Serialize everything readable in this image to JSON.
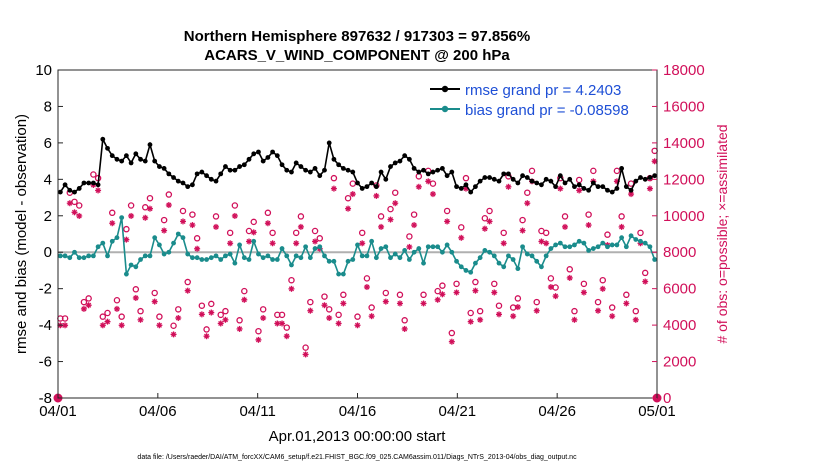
{
  "chart_data": {
    "type": "line",
    "title_line1": "Northern Hemisphere 897632 / 917303 = 97.856%",
    "title_line2": "ACARS_V_WIND_COMPONENT @ 200 hPa",
    "xlabel": "Apr.01,2013 00:00:00 start",
    "ylabel_left": "rmse and bias (model - observation)",
    "ylabel_right": "# of obs: o=possible; ×=assimilated",
    "footer": "data file: /Users/raeder/DAI/ATM_forcXX/CAM6_setup/f.e21.FHIST_BGC.f09_025.CAM6assim.011/Diags_NTrS_2013-04/obs_diag_output.nc",
    "x_ticks": [
      "04/01",
      "04/06",
      "04/11",
      "04/16",
      "04/21",
      "04/26",
      "05/01"
    ],
    "xlim": [
      0,
      30
    ],
    "ylim_left": [
      -8,
      10
    ],
    "y_ticks_left": [
      "-8",
      "-6",
      "-4",
      "-2",
      "0",
      "2",
      "4",
      "6",
      "8",
      "10"
    ],
    "ylim_right": [
      0,
      18000
    ],
    "y_ticks_right": [
      "0",
      "2000",
      "4000",
      "6000",
      "8000",
      "10000",
      "12000",
      "14000",
      "16000",
      "18000"
    ],
    "legend": [
      "rmse grand pr = 4.2403",
      "bias grand pr = -0.08598"
    ],
    "colors": {
      "rmse": "#000000",
      "bias": "#1a8c8c",
      "obs": "#d1105a",
      "zero": "#b0b0b0"
    },
    "series": [
      {
        "name": "rmse",
        "values": [
          3.3,
          3.7,
          3.4,
          3.3,
          3.5,
          3.8,
          3.8,
          3.8,
          3.7,
          6.2,
          5.7,
          5.3,
          5.1,
          5.0,
          5.3,
          4.9,
          5.4,
          5.1,
          5.0,
          5.9,
          5.0,
          4.7,
          4.6,
          4.3,
          4.1,
          3.9,
          3.8,
          3.6,
          3.7,
          4.3,
          4.4,
          4.2,
          4.0,
          3.9,
          4.3,
          4.7,
          4.5,
          4.5,
          4.7,
          4.8,
          5.1,
          5.4,
          5.5,
          5.0,
          5.2,
          5.5,
          5.3,
          4.8,
          4.5,
          4.4,
          4.9,
          4.7,
          4.5,
          4.4,
          4.6,
          4.2,
          4.5,
          6.0,
          5.1,
          4.8,
          4.6,
          4.5,
          4.4,
          3.8,
          3.5,
          3.6,
          3.8,
          3.6,
          4.4,
          4.0,
          4.7,
          4.9,
          5.0,
          5.3,
          5.1,
          4.6,
          4.4,
          4.5,
          4.3,
          4.4,
          4.5,
          4.6,
          4.2,
          4.4,
          3.6,
          3.5,
          3.7,
          3.3,
          3.6,
          3.9,
          4.1,
          4.1,
          4.0,
          3.9,
          4.3,
          4.3,
          4.0,
          3.8,
          4.2,
          4.1,
          3.9,
          3.8,
          3.7,
          4.0,
          3.9,
          3.6,
          4.2,
          3.8,
          4.0,
          3.6,
          3.7,
          3.5,
          3.4,
          3.8,
          3.6,
          3.6,
          3.4,
          3.3,
          3.5,
          4.6,
          3.6,
          3.4,
          3.9,
          4.1,
          4.0,
          4.1,
          4.2
        ]
      },
      {
        "name": "bias",
        "values": [
          -0.2,
          -0.2,
          -0.3,
          0.0,
          -0.3,
          -0.3,
          -0.2,
          -0.2,
          0.3,
          0.5,
          -0.2,
          0.6,
          0.8,
          1.9,
          -1.2,
          -0.7,
          -0.8,
          -0.4,
          -0.2,
          -0.2,
          0.8,
          0.4,
          -0.1,
          0.0,
          0.5,
          1.0,
          0.8,
          -0.1,
          -0.3,
          -0.3,
          -0.4,
          -0.4,
          -0.3,
          -0.2,
          -0.4,
          -0.2,
          -0.1,
          -0.6,
          0.4,
          -0.3,
          -0.4,
          0.6,
          -0.1,
          -0.3,
          -0.2,
          -0.4,
          -0.4,
          0.2,
          -0.2,
          -0.7,
          -0.2,
          -0.3,
          0.3,
          -0.3,
          0.2,
          0.3,
          -0.2,
          -0.5,
          -0.5,
          -1.2,
          -1.2,
          -0.5,
          -0.4,
          0.4,
          -0.2,
          -0.2,
          0.6,
          -0.3,
          0.2,
          0.3,
          -0.3,
          -0.1,
          -0.3,
          0.1,
          -0.4,
          0.0,
          0.2,
          -0.6,
          0.3,
          0.3,
          0.3,
          0.0,
          0.4,
          0.0,
          -0.5,
          -0.8,
          -1.0,
          -1.1,
          -0.6,
          -0.3,
          0.1,
          0.0,
          -0.2,
          -0.6,
          -0.8,
          -0.2,
          -0.4,
          -0.9,
          0.3,
          -0.1,
          -0.2,
          -0.5,
          -0.8,
          -0.2,
          0.2,
          0.4,
          0.5,
          0.3,
          0.3,
          0.4,
          0.6,
          0.5,
          0.1,
          0.2,
          0.3,
          0.5,
          0.3,
          0.4,
          0.4,
          0.8,
          0.3,
          0.9,
          0.7,
          0.6,
          0.5,
          0.3,
          -0.4
        ]
      },
      {
        "name": "obs_possible",
        "values": [
          4200,
          4200,
          11100,
          10600,
          10400,
          5100,
          5300,
          12100,
          11900,
          4300,
          4500,
          10000,
          5200,
          4300,
          9100,
          10400,
          5800,
          4600,
          10300,
          10800,
          5600,
          4300,
          9600,
          11000,
          3800,
          4700,
          10100,
          6200,
          9900,
          8600,
          4900,
          3600,
          5000,
          9800,
          4400,
          4600,
          8900,
          10400,
          4100,
          5700,
          9000,
          9500,
          3500,
          4700,
          10000,
          8900,
          4400,
          4400,
          3700,
          6300,
          8900,
          9800,
          2600,
          5100,
          9000,
          8600,
          5400,
          4700,
          11900,
          4400,
          5500,
          10800,
          11600,
          4300,
          8900,
          6400,
          4800,
          11500,
          9800,
          5600,
          10200,
          11100,
          5500,
          4100,
          8700,
          9900,
          12000,
          5500,
          12300,
          11600,
          5700,
          6000,
          10100,
          3400,
          6100,
          9200,
          11900,
          4500,
          6200,
          4600,
          9700,
          10100,
          6100,
          4900,
          8900,
          12000,
          4800,
          5300,
          9600,
          11100,
          12300,
          5100,
          9000,
          8900,
          6400,
          5900,
          11900,
          9800,
          6900,
          4600,
          11800,
          6100,
          9900,
          12300,
          5100,
          6300,
          8800,
          4800,
          12300,
          9800,
          5500,
          11600,
          4600,
          8900,
          6700,
          11900,
          13400
        ]
      },
      {
        "name": "obs_assimilated",
        "values": [
          4100,
          4100,
          10800,
          10300,
          10100,
          5000,
          5200,
          11800,
          11500,
          4100,
          4300,
          9700,
          5000,
          4100,
          8800,
          10100,
          5600,
          4400,
          10000,
          10500,
          5400,
          4100,
          9300,
          10700,
          3600,
          4500,
          9800,
          6000,
          9600,
          8300,
          4700,
          3500,
          4800,
          9500,
          4200,
          4400,
          8600,
          10100,
          3900,
          5500,
          8700,
          9200,
          3300,
          4500,
          9700,
          8600,
          4200,
          4200,
          3500,
          6100,
          8600,
          9500,
          2500,
          4900,
          8700,
          8300,
          5200,
          4500,
          11600,
          4200,
          5300,
          10500,
          11300,
          4100,
          8600,
          6200,
          4600,
          11200,
          9500,
          5400,
          9900,
          10800,
          5300,
          3900,
          8400,
          9600,
          11700,
          5300,
          12000,
          11300,
          5500,
          5800,
          9800,
          3200,
          5900,
          8900,
          11600,
          4300,
          6000,
          4400,
          9400,
          9800,
          5900,
          4700,
          8600,
          11700,
          4600,
          5100,
          9300,
          10800,
          12000,
          4900,
          8700,
          8600,
          6200,
          5700,
          11600,
          9500,
          6700,
          4400,
          11500,
          5900,
          9600,
          12000,
          4900,
          6100,
          8500,
          4600,
          12000,
          9500,
          5300,
          11300,
          4400,
          8600,
          6500,
          11600,
          13100
        ]
      }
    ],
    "endpoints": {
      "obs_at_start": 0,
      "obs_at_end": 0
    }
  }
}
